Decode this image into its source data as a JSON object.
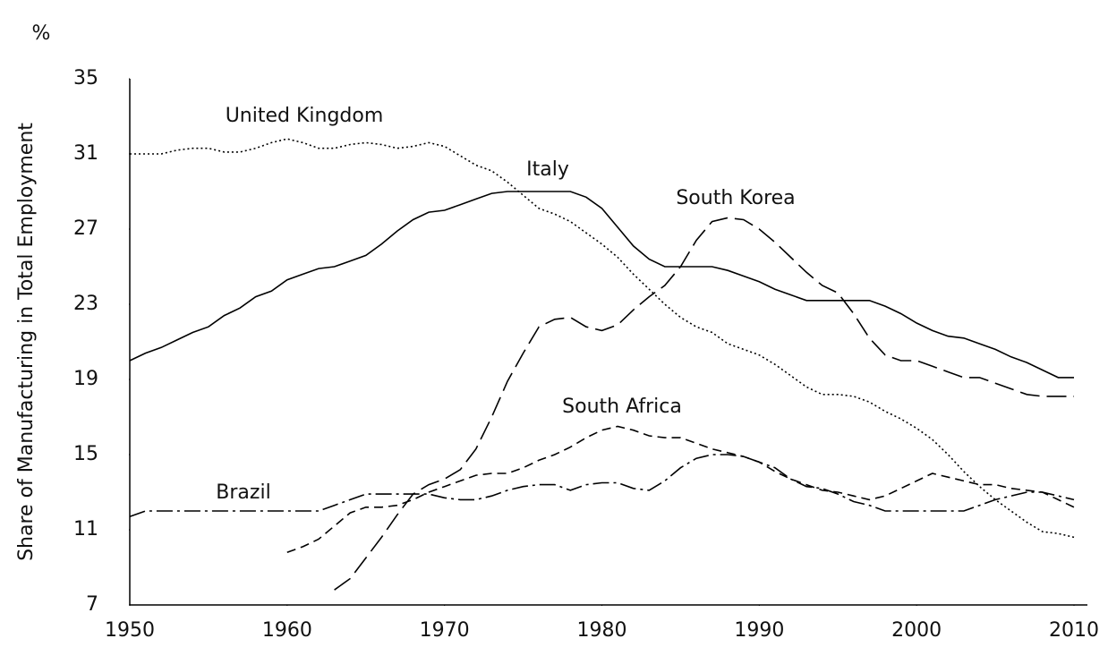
{
  "chart_data": {
    "type": "line",
    "ylabel": "Share of Manufacturing in Total Employment",
    "unit": "%",
    "x": [
      1950,
      1951,
      1952,
      1953,
      1954,
      1955,
      1956,
      1957,
      1958,
      1959,
      1960,
      1961,
      1962,
      1963,
      1964,
      1965,
      1966,
      1967,
      1968,
      1969,
      1970,
      1971,
      1972,
      1973,
      1974,
      1975,
      1976,
      1977,
      1978,
      1979,
      1980,
      1981,
      1982,
      1983,
      1984,
      1985,
      1986,
      1987,
      1988,
      1989,
      1990,
      1991,
      1992,
      1993,
      1994,
      1995,
      1996,
      1997,
      1998,
      1999,
      2000,
      2001,
      2002,
      2003,
      2004,
      2005,
      2006,
      2007,
      2008,
      2009,
      2010
    ],
    "xlim": [
      1950,
      2010
    ],
    "xticks": [
      1950,
      1960,
      1970,
      1980,
      1990,
      2000,
      2010
    ],
    "ylim": [
      7,
      35
    ],
    "yticks": [
      7,
      11,
      15,
      19,
      23,
      27,
      31,
      35
    ],
    "series": [
      {
        "name": "United Kingdom",
        "color": "#000000",
        "dash": "2,3",
        "values": [
          31,
          31,
          31,
          31.2,
          31.3,
          31.3,
          31.1,
          31.1,
          31.3,
          31.6,
          31.8,
          31.6,
          31.3,
          31.3,
          31.5,
          31.6,
          31.5,
          31.3,
          31.4,
          31.6,
          31.4,
          30.9,
          30.4,
          30.1,
          29.5,
          28.8,
          28.1,
          27.8,
          27.4,
          26.8,
          26.2,
          25.5,
          24.6,
          23.8,
          23,
          22.3,
          21.8,
          21.5,
          20.9,
          20.6,
          20.3,
          19.8,
          19.2,
          18.6,
          18.2,
          18.2,
          18.1,
          17.8,
          17.3,
          16.9,
          16.4,
          15.8,
          15,
          14.1,
          13.3,
          12.6,
          12,
          11.4,
          10.9,
          10.8,
          10.6
        ]
      },
      {
        "name": "Italy",
        "color": "#000000",
        "dash": "none",
        "values": [
          20,
          20.4,
          20.7,
          21.1,
          21.5,
          21.8,
          22.4,
          22.8,
          23.4,
          23.7,
          24.3,
          24.6,
          24.9,
          25,
          25.3,
          25.6,
          26.2,
          26.9,
          27.5,
          27.9,
          28,
          28.3,
          28.6,
          28.9,
          29,
          29,
          29,
          29,
          29,
          28.7,
          28.1,
          27.1,
          26.1,
          25.4,
          25,
          25,
          25,
          25,
          24.8,
          24.5,
          24.2,
          23.8,
          23.5,
          23.2,
          23.2,
          23.2,
          23.2,
          23.2,
          22.9,
          22.5,
          22,
          21.6,
          21.3,
          21.2,
          20.9,
          20.6,
          20.2,
          19.9,
          19.5,
          19.1,
          19.1
        ]
      },
      {
        "name": "South Korea",
        "color": "#000000",
        "dash": "22,8",
        "values": [
          null,
          null,
          null,
          null,
          null,
          null,
          null,
          null,
          null,
          null,
          null,
          null,
          null,
          7.8,
          8.4,
          9.5,
          10.6,
          11.8,
          12.9,
          13.4,
          13.7,
          14.2,
          15.3,
          17,
          18.9,
          20.4,
          21.8,
          22.2,
          22.3,
          21.8,
          21.6,
          21.9,
          22.7,
          23.4,
          24,
          25,
          26.4,
          27.4,
          27.6,
          27.5,
          27,
          26.3,
          25.5,
          24.7,
          24,
          23.6,
          22.5,
          21.2,
          20.3,
          20,
          20,
          19.7,
          19.4,
          19.1,
          19.1,
          18.8,
          18.5,
          18.2,
          18.1,
          18.1,
          18.1
        ]
      },
      {
        "name": "South Africa",
        "color": "#000000",
        "dash": "10,6",
        "values": [
          null,
          null,
          null,
          null,
          null,
          null,
          null,
          null,
          null,
          null,
          9.8,
          10.1,
          10.5,
          11.2,
          11.9,
          12.2,
          12.2,
          12.3,
          12.6,
          13,
          13.3,
          13.6,
          13.9,
          14,
          14,
          14.3,
          14.7,
          15,
          15.4,
          15.9,
          16.3,
          16.5,
          16.3,
          16,
          15.9,
          15.9,
          15.6,
          15.3,
          15.1,
          14.9,
          14.6,
          14.1,
          13.7,
          13.4,
          13.1,
          13,
          12.8,
          12.6,
          12.8,
          13.2,
          13.6,
          14,
          13.8,
          13.6,
          13.4,
          13.4,
          13.2,
          13.1,
          13,
          12.6,
          12.2
        ]
      },
      {
        "name": "Brazil",
        "color": "#000000",
        "dash": "18,5,3,5",
        "values": [
          11.7,
          12,
          12,
          12,
          12,
          12,
          12,
          12,
          12,
          12,
          12,
          12,
          12,
          12.3,
          12.6,
          12.9,
          12.9,
          12.9,
          12.9,
          12.9,
          12.7,
          12.6,
          12.6,
          12.8,
          13.1,
          13.3,
          13.4,
          13.4,
          13.1,
          13.4,
          13.5,
          13.5,
          13.2,
          13.1,
          13.6,
          14.3,
          14.8,
          15,
          15,
          14.9,
          14.6,
          14.3,
          13.7,
          13.3,
          13.2,
          12.9,
          12.5,
          12.3,
          12,
          12,
          12,
          12,
          12,
          12,
          12.3,
          12.6,
          12.8,
          13,
          13,
          12.8,
          12.6
        ]
      }
    ]
  }
}
